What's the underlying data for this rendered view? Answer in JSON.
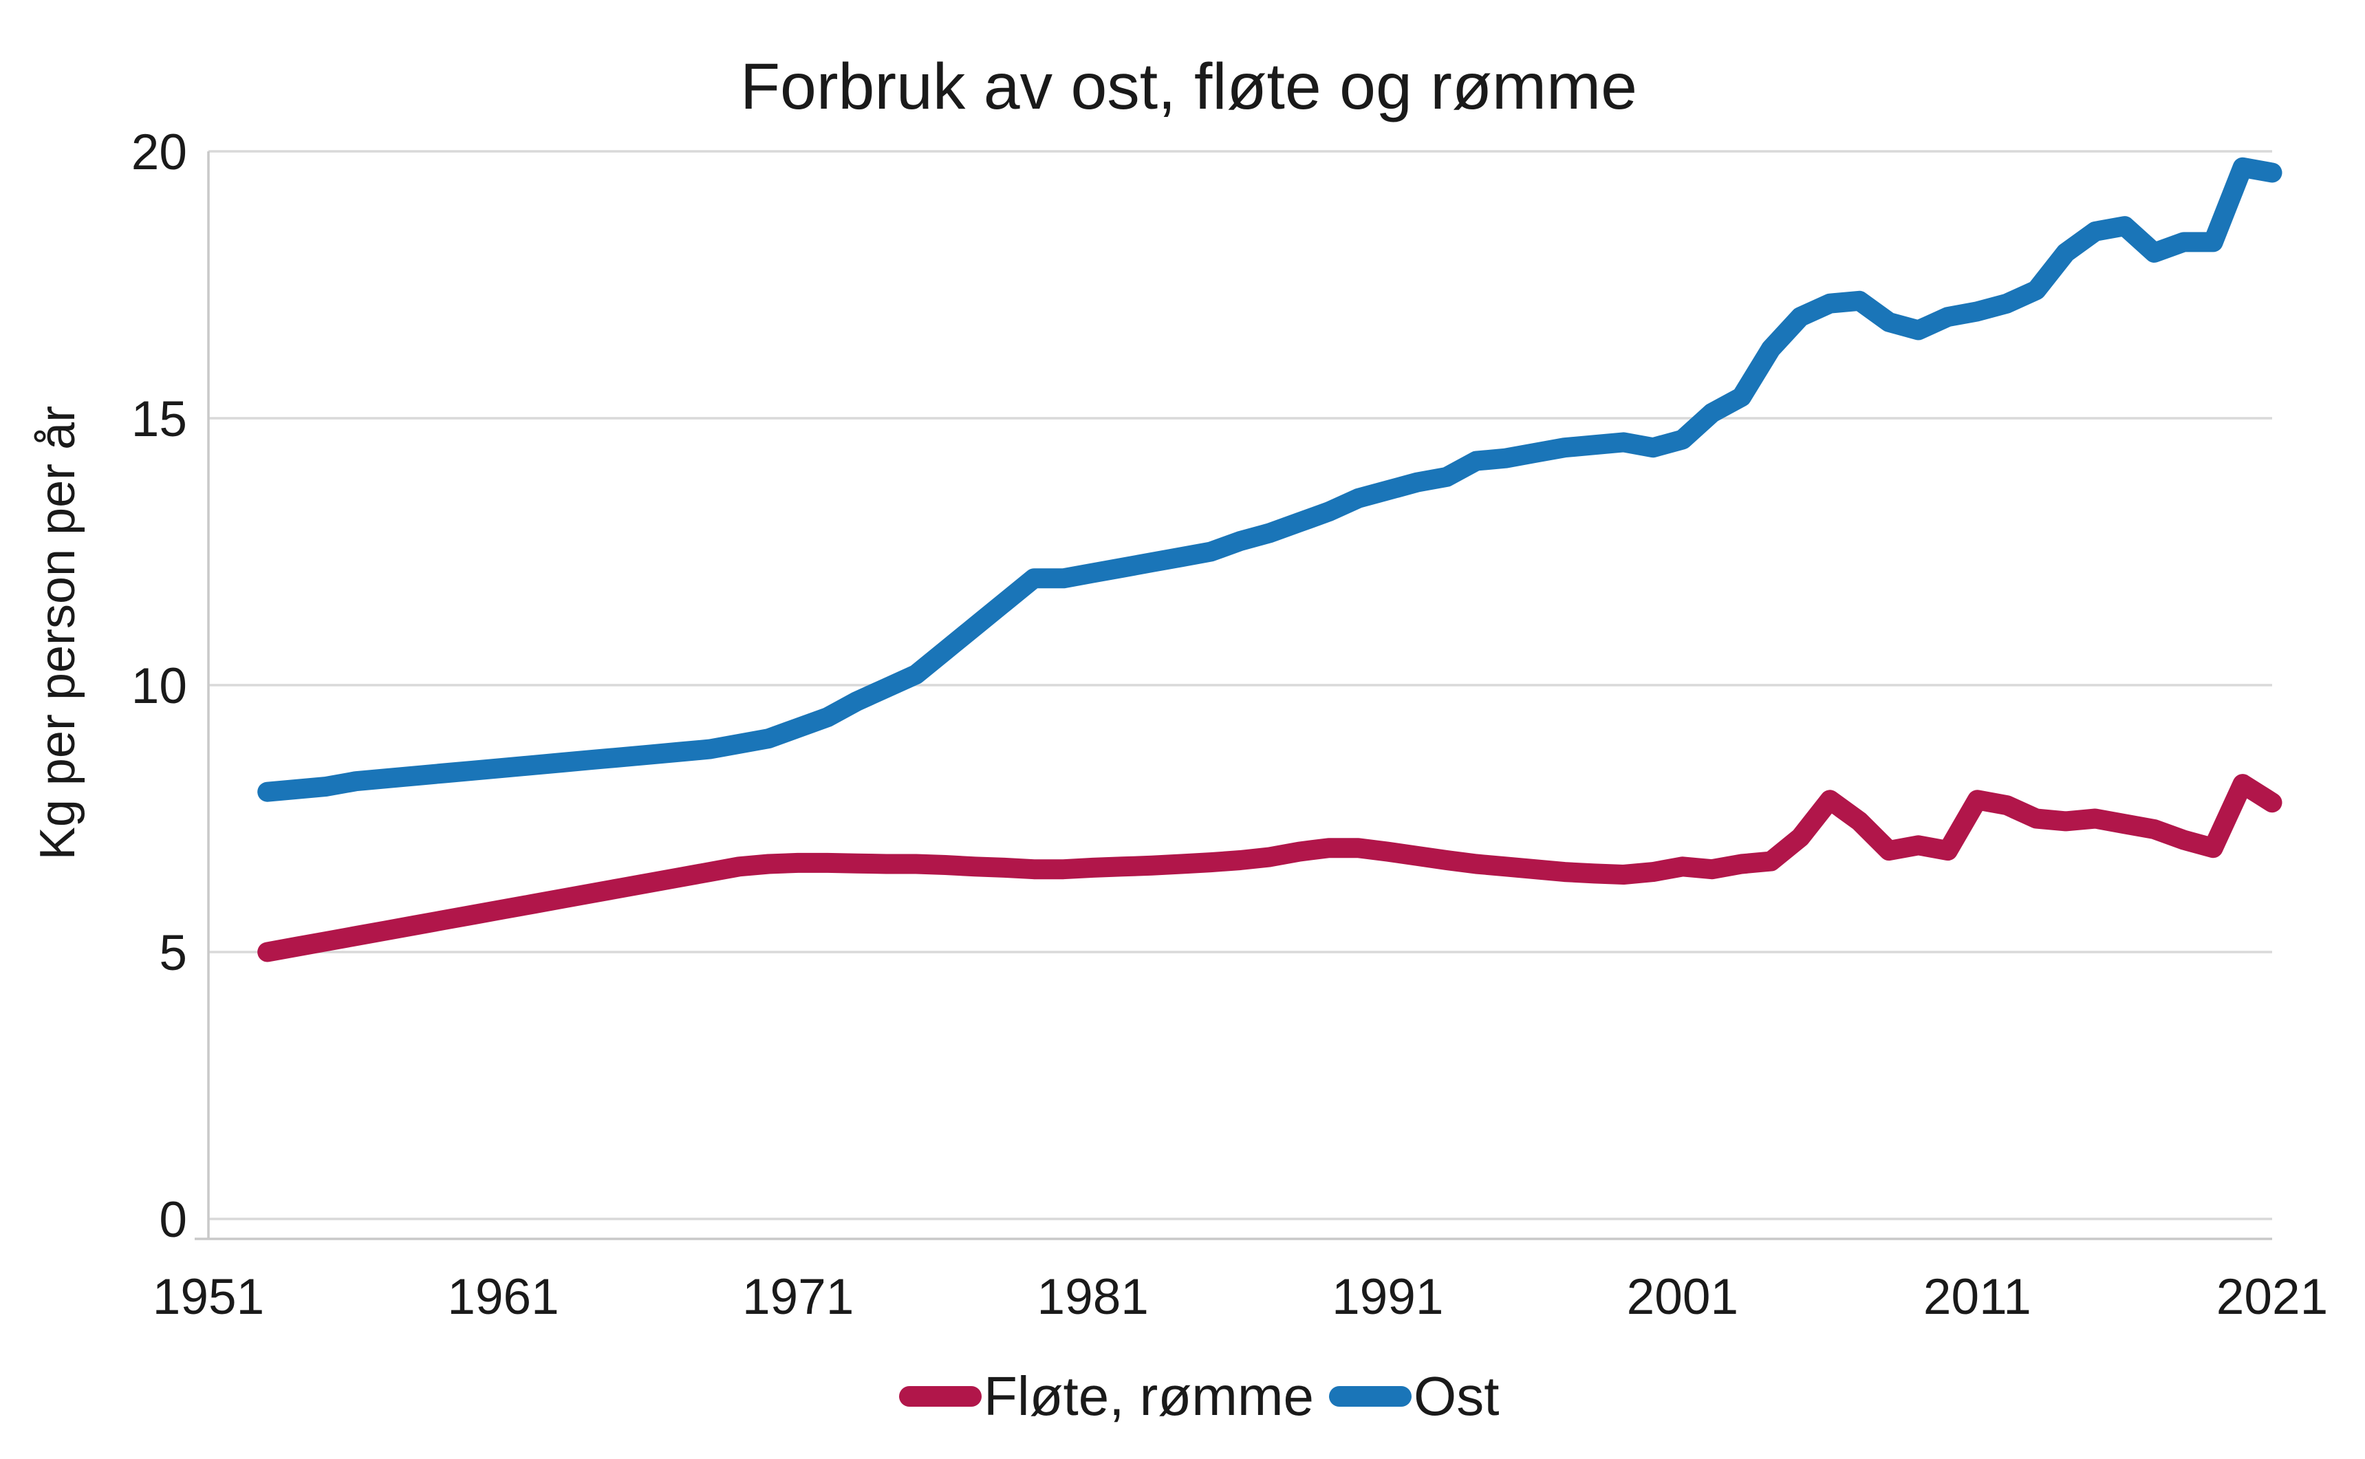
{
  "title": "Forbruk av ost, fløte og rømme",
  "y_axis": {
    "title": "Kg per person per år"
  },
  "legend": {
    "position": "bottom-center",
    "items": [
      {
        "label": "Fløte, rømme",
        "color": "#B1164A"
      },
      {
        "label": "Ost",
        "color": "#1A75B8"
      }
    ]
  },
  "colors": {
    "gridline": "#D9D9D9",
    "axis_line": "#C9C9C9",
    "text": "#1a1a1a",
    "background": "#ffffff"
  },
  "chart_data": {
    "type": "line",
    "title": "Forbruk av ost, fløte og rømme",
    "xlabel": "",
    "ylabel": "Kg per person per år",
    "xlim": [
      1951,
      2021
    ],
    "ylim": [
      0,
      20
    ],
    "xticks": [
      1951,
      1961,
      1971,
      1981,
      1991,
      2001,
      2011,
      2021
    ],
    "yticks": [
      0,
      5,
      10,
      15,
      20
    ],
    "grid": "horizontal",
    "legend_position": "bottom",
    "years": [
      1953,
      1954,
      1955,
      1956,
      1957,
      1958,
      1959,
      1960,
      1961,
      1962,
      1963,
      1964,
      1965,
      1966,
      1967,
      1968,
      1969,
      1970,
      1971,
      1972,
      1973,
      1974,
      1975,
      1976,
      1977,
      1978,
      1979,
      1980,
      1981,
      1982,
      1983,
      1984,
      1985,
      1986,
      1987,
      1988,
      1989,
      1990,
      1991,
      1992,
      1993,
      1994,
      1995,
      1996,
      1997,
      1998,
      1999,
      2000,
      2001,
      2002,
      2003,
      2004,
      2005,
      2006,
      2007,
      2008,
      2009,
      2010,
      2011,
      2012,
      2013,
      2014,
      2015,
      2016,
      2017,
      2018,
      2019,
      2020,
      2021
    ],
    "series": [
      {
        "name": "Fløte, rømme",
        "color": "#B1164A",
        "values": [
          5.0,
          5.1,
          5.2,
          5.3,
          5.4,
          5.5,
          5.6,
          5.7,
          5.8,
          5.9,
          6.0,
          6.1,
          6.2,
          6.3,
          6.4,
          6.5,
          6.6,
          6.65,
          6.67,
          6.67,
          6.66,
          6.65,
          6.65,
          6.63,
          6.6,
          6.58,
          6.55,
          6.55,
          6.58,
          6.6,
          6.62,
          6.65,
          6.68,
          6.72,
          6.78,
          6.88,
          6.95,
          6.95,
          6.88,
          6.8,
          6.72,
          6.65,
          6.6,
          6.55,
          6.5,
          6.47,
          6.45,
          6.5,
          6.6,
          6.55,
          6.65,
          6.7,
          7.15,
          7.85,
          7.45,
          6.9,
          7.0,
          6.9,
          7.85,
          7.75,
          7.5,
          7.45,
          7.5,
          7.4,
          7.3,
          7.1,
          6.95,
          8.15,
          7.8
        ]
      },
      {
        "name": "Ost",
        "color": "#1A75B8",
        "values": [
          8.0,
          8.05,
          8.1,
          8.2,
          8.25,
          8.3,
          8.35,
          8.4,
          8.45,
          8.5,
          8.55,
          8.6,
          8.65,
          8.7,
          8.75,
          8.8,
          8.9,
          9.0,
          9.2,
          9.4,
          9.7,
          9.95,
          10.2,
          10.65,
          11.1,
          11.55,
          12.0,
          12.0,
          12.1,
          12.2,
          12.3,
          12.4,
          12.5,
          12.7,
          12.85,
          13.05,
          13.25,
          13.5,
          13.65,
          13.8,
          13.9,
          14.2,
          14.25,
          14.35,
          14.45,
          14.5,
          14.55,
          14.45,
          14.6,
          15.1,
          15.4,
          16.3,
          16.9,
          17.15,
          17.2,
          16.8,
          16.65,
          16.9,
          17.0,
          17.15,
          17.4,
          18.1,
          18.5,
          18.6,
          18.1,
          18.3,
          18.3,
          19.7,
          19.6
        ]
      }
    ]
  }
}
